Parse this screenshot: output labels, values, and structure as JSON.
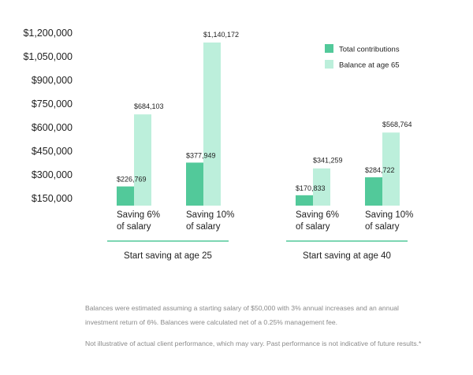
{
  "chart_data": {
    "type": "bar",
    "title": "",
    "xlabel": "",
    "ylabel": "",
    "ylim": [
      150000,
      1200000
    ],
    "yticks": [
      150000,
      300000,
      450000,
      600000,
      750000,
      900000,
      1050000,
      1200000
    ],
    "ytick_labels": [
      "$150,000",
      "$300,000",
      "$450,000",
      "$600,000",
      "$750,000",
      "$900,000",
      "$1,050,000",
      "$1,200,000"
    ],
    "grid": false,
    "legend_position": "top-right",
    "colors": {
      "contrib": "#52c99a",
      "balance": "#bcefdb",
      "group_line": "#52c99a"
    },
    "series": [
      {
        "name": "Total contributions",
        "key": "contrib"
      },
      {
        "name": "Balance at age 65",
        "key": "balance"
      }
    ],
    "groups": [
      {
        "label": "Start saving at age 25",
        "categories": [
          {
            "label_lines": [
              "Saving 6%",
              "of salary"
            ],
            "contrib": 226769,
            "balance": 684103,
            "contrib_label": "$226,769",
            "balance_label": "$684,103"
          },
          {
            "label_lines": [
              "Saving 10%",
              "of salary"
            ],
            "contrib": 377949,
            "balance": 1140172,
            "contrib_label": "$377,949",
            "balance_label": "$1,140,172"
          }
        ]
      },
      {
        "label": "Start saving at age 40",
        "categories": [
          {
            "label_lines": [
              "Saving 6%",
              "of salary"
            ],
            "contrib": 170833,
            "balance": 341259,
            "contrib_label": "$170,833",
            "balance_label": "$341,259"
          },
          {
            "label_lines": [
              "Saving 10%",
              "of salary"
            ],
            "contrib": 284722,
            "balance": 568764,
            "contrib_label": "$284,722",
            "balance_label": "$568,764"
          }
        ]
      }
    ]
  },
  "notes": {
    "note1": "Balances were estimated assuming a starting salary of $50,000 with 3% annual increases and an annual investment return of 6%. Balances were calculated net of a 0.25% management fee.",
    "note2": "Not illustrative of actual client performance, which may vary. Past performance is not indicative of future results.*"
  }
}
